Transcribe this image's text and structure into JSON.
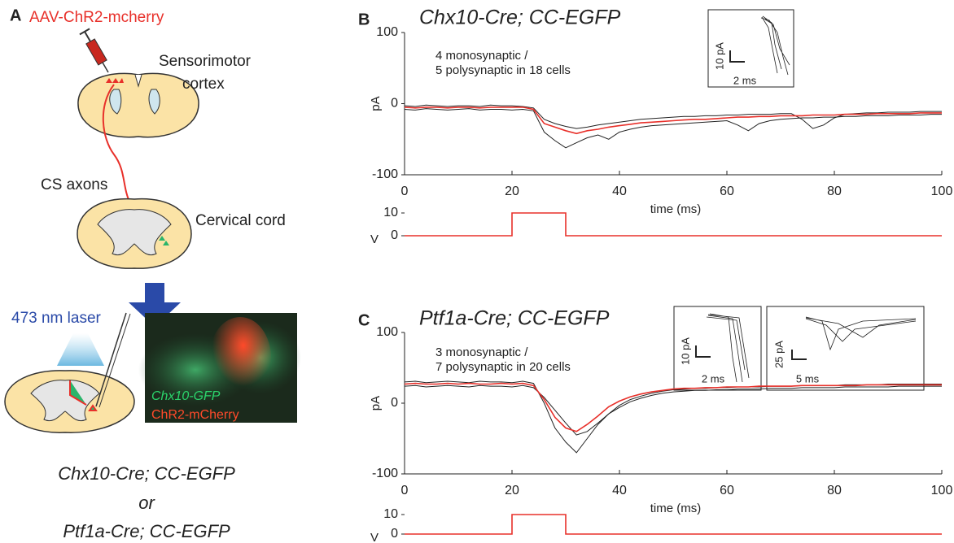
{
  "panel_a": {
    "label": "A",
    "virus": "AAV-ChR2-mcherry",
    "cortex_label": [
      "Sensorimotor",
      "cortex"
    ],
    "axons_label": "CS axons",
    "cord_label": "Cervical cord",
    "laser_label": "473 nm laser",
    "image_labels": [
      "Chx10-GFP",
      "ChR2-mCherry"
    ],
    "genotypes": [
      "Chx10-Cre; CC-EGFP",
      "or",
      "Ptf1a-Cre; CC-EGFP"
    ]
  },
  "chart_data": [
    {
      "type": "line",
      "panel": "B",
      "title": "Chx10-Cre; CC-EGFP",
      "annotations": [
        "4 monosynaptic /",
        "5 polysynaptic in 18 cells"
      ],
      "insets": [
        {
          "y_scale": "10 pA",
          "x_scale": "2 ms"
        }
      ],
      "xlabel": "time (ms)",
      "ylabel": "pA",
      "xlim": [
        0,
        100
      ],
      "xticks": [
        0,
        20,
        40,
        60,
        80,
        100
      ],
      "ylim": [
        -100,
        100
      ],
      "yticks": [
        -100,
        0,
        100
      ],
      "x": [
        0,
        2,
        4,
        6,
        8,
        10,
        12,
        14,
        16,
        18,
        20,
        22,
        24,
        26,
        28,
        30,
        32,
        34,
        36,
        38,
        40,
        42,
        44,
        46,
        48,
        50,
        52,
        54,
        56,
        58,
        60,
        62,
        64,
        66,
        68,
        70,
        72,
        74,
        76,
        78,
        80,
        82,
        84,
        86,
        88,
        90,
        92,
        94,
        96,
        98,
        100
      ],
      "series": [
        {
          "color": "#222222",
          "values": [
            -8,
            -9,
            -7,
            -8,
            -9,
            -8,
            -7,
            -9,
            -8,
            -8,
            -9,
            -8,
            -10,
            -40,
            -52,
            -62,
            -55,
            -48,
            -44,
            -50,
            -40,
            -36,
            -33,
            -31,
            -30,
            -29,
            -28,
            -27,
            -26,
            -25,
            -24,
            -30,
            -38,
            -28,
            -24,
            -22,
            -21,
            -20,
            -20,
            -19,
            -19,
            -18,
            -18,
            -17,
            -17,
            -17,
            -16,
            -16,
            -16,
            -15,
            -15
          ]
        },
        {
          "color": "#222222",
          "values": [
            -3,
            -4,
            -2,
            -3,
            -4,
            -3,
            -3,
            -4,
            -2,
            -3,
            -3,
            -4,
            -6,
            -22,
            -28,
            -32,
            -35,
            -33,
            -30,
            -28,
            -26,
            -24,
            -22,
            -21,
            -20,
            -19,
            -18,
            -18,
            -17,
            -17,
            -16,
            -16,
            -15,
            -15,
            -15,
            -14,
            -14,
            -22,
            -35,
            -30,
            -20,
            -15,
            -14,
            -13,
            -13,
            -12,
            -12,
            -12,
            -11,
            -11,
            -11
          ]
        },
        {
          "color": "#e8302a",
          "values": [
            -5,
            -6,
            -5,
            -5,
            -6,
            -5,
            -5,
            -6,
            -5,
            -5,
            -5,
            -5,
            -8,
            -28,
            -33,
            -38,
            -42,
            -38,
            -36,
            -33,
            -31,
            -29,
            -27,
            -26,
            -25,
            -24,
            -23,
            -22,
            -22,
            -21,
            -20,
            -19,
            -19,
            -18,
            -18,
            -17,
            -17,
            -17,
            -16,
            -16,
            -16,
            -15,
            -15,
            -15,
            -14,
            -14,
            -14,
            -14,
            -13,
            -13,
            -13
          ]
        }
      ]
    },
    {
      "type": "step",
      "ylabel": "V",
      "xlim": [
        0,
        100
      ],
      "ylim": [
        0,
        10
      ],
      "yticks": [
        0,
        10
      ],
      "x": [
        0,
        20,
        20,
        30,
        30,
        100
      ],
      "series": [
        {
          "color": "#e8302a",
          "values": [
            0,
            0,
            10,
            10,
            0,
            0
          ]
        }
      ]
    },
    {
      "type": "line",
      "panel": "C",
      "title": "Ptf1a-Cre; CC-EGFP",
      "annotations": [
        "3 monosynaptic /",
        "7 polysynaptic in 20 cells"
      ],
      "insets": [
        {
          "y_scale": "10 pA",
          "x_scale": "2 ms"
        },
        {
          "y_scale": "25 pA",
          "x_scale": "5 ms"
        }
      ],
      "xlabel": "time (ms)",
      "ylabel": "pA",
      "xlim": [
        0,
        100
      ],
      "xticks": [
        0,
        20,
        40,
        60,
        80,
        100
      ],
      "ylim": [
        -100,
        100
      ],
      "yticks": [
        -100,
        0,
        100
      ],
      "x": [
        0,
        2,
        4,
        6,
        8,
        10,
        12,
        14,
        16,
        18,
        20,
        22,
        24,
        26,
        28,
        30,
        32,
        34,
        36,
        38,
        40,
        42,
        44,
        46,
        48,
        50,
        52,
        54,
        56,
        58,
        60,
        62,
        64,
        66,
        68,
        70,
        72,
        74,
        76,
        78,
        80,
        82,
        84,
        86,
        88,
        90,
        92,
        94,
        96,
        98,
        100
      ],
      "series": [
        {
          "color": "#222222",
          "values": [
            30,
            31,
            29,
            30,
            31,
            30,
            29,
            31,
            30,
            30,
            29,
            31,
            28,
            0,
            -35,
            -55,
            -70,
            -50,
            -30,
            -15,
            -3,
            5,
            10,
            14,
            17,
            19,
            20,
            21,
            21,
            22,
            22,
            23,
            23,
            23,
            24,
            24,
            24,
            25,
            25,
            25,
            25,
            26,
            26,
            26,
            26,
            27,
            27,
            27,
            27,
            27,
            27
          ]
        },
        {
          "color": "#222222",
          "values": [
            24,
            25,
            23,
            24,
            25,
            24,
            23,
            25,
            24,
            24,
            23,
            25,
            22,
            8,
            -10,
            -28,
            -45,
            -40,
            -28,
            -15,
            -6,
            2,
            7,
            11,
            14,
            16,
            17,
            18,
            18,
            19,
            19,
            20,
            20,
            20,
            21,
            21,
            21,
            22,
            22,
            22,
            22,
            23,
            23,
            23,
            23,
            23,
            24,
            24,
            24,
            24,
            24
          ]
        },
        {
          "color": "#e8302a",
          "values": [
            27,
            28,
            27,
            27,
            28,
            27,
            28,
            27,
            27,
            28,
            27,
            28,
            25,
            5,
            -20,
            -35,
            -40,
            -30,
            -18,
            -5,
            3,
            9,
            13,
            16,
            18,
            20,
            21,
            21,
            22,
            22,
            23,
            23,
            23,
            24,
            24,
            24,
            24,
            25,
            25,
            25,
            25,
            25,
            25,
            26,
            26,
            26,
            26,
            26,
            26,
            26,
            26
          ]
        }
      ]
    },
    {
      "type": "step",
      "ylabel": "V",
      "xlim": [
        0,
        100
      ],
      "ylim": [
        0,
        10
      ],
      "yticks": [
        0,
        10
      ],
      "x": [
        0,
        20,
        20,
        30,
        30,
        100
      ],
      "series": [
        {
          "color": "#e8302a",
          "values": [
            0,
            0,
            10,
            10,
            0,
            0
          ]
        }
      ]
    }
  ]
}
